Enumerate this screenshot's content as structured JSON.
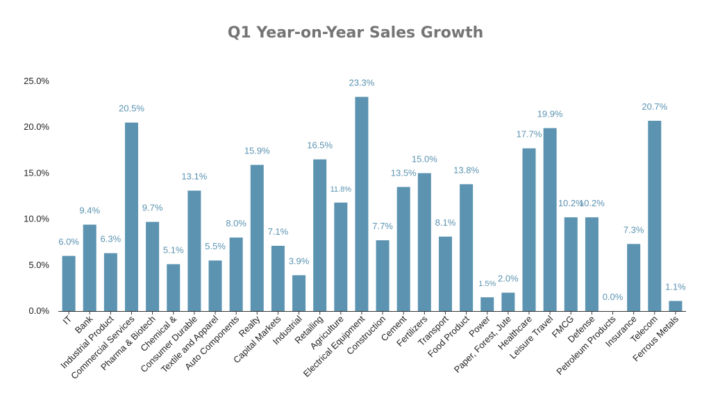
{
  "chart_data": {
    "type": "bar",
    "title": "Q1 Year-on-Year Sales Growth",
    "xlabel": "",
    "ylabel": "",
    "ylim": [
      0,
      25
    ],
    "yticks": [
      "0.0%",
      "5.0%",
      "10.0%",
      "15.0%",
      "20.0%",
      "25.0%"
    ],
    "grid": false,
    "colors": {
      "bar": "#5b93b1",
      "label": "#5b93b1",
      "axis": "#333333",
      "title": "#757575"
    },
    "categories": [
      "IT",
      "Bank",
      "Industrial Product",
      "Commercial Services",
      "Pharma & Biotech",
      "Chemical &",
      "Consumer Durable",
      "Textile and Apparel",
      "Auto Components",
      "Realty",
      "Capital Markets",
      "Industrial",
      "Retailing",
      "Agriculture",
      "Electrical Equipment",
      "Construction",
      "Cement",
      "Fertilizers",
      "Transport",
      "Food Product",
      "Power",
      "Paper, Forest, Jute",
      "Healthcare",
      "Leisure Travel",
      "FMCG",
      "Defense",
      "Petroleum Products",
      "Insurance",
      "Telecom",
      "Ferrous Metals"
    ],
    "values": [
      6.0,
      9.4,
      6.3,
      20.5,
      9.7,
      5.1,
      13.1,
      5.5,
      8.0,
      15.9,
      7.1,
      3.9,
      16.5,
      11.8,
      23.3,
      7.7,
      13.5,
      15.0,
      8.1,
      13.8,
      1.5,
      2.0,
      17.7,
      19.9,
      10.2,
      10.2,
      0.0,
      7.3,
      20.7,
      1.1
    ],
    "labels": [
      "6.0%",
      "9.4%",
      "6.3%",
      "20.5%",
      "9.7%",
      "5.1%",
      "13.1%",
      "5.5%",
      "8.0%",
      "15.9%",
      "7.1%",
      "3.9%",
      "16.5%",
      "11.8%",
      "23.3%",
      "7.7%",
      "13.5%",
      "15.0%",
      "8.1%",
      "13.8%",
      "1.5%",
      "2.0%",
      "17.7%",
      "19.9%",
      "10.2%",
      "10.2%",
      "0.0%",
      "7.3%",
      "20.7%",
      "1.1%"
    ]
  }
}
